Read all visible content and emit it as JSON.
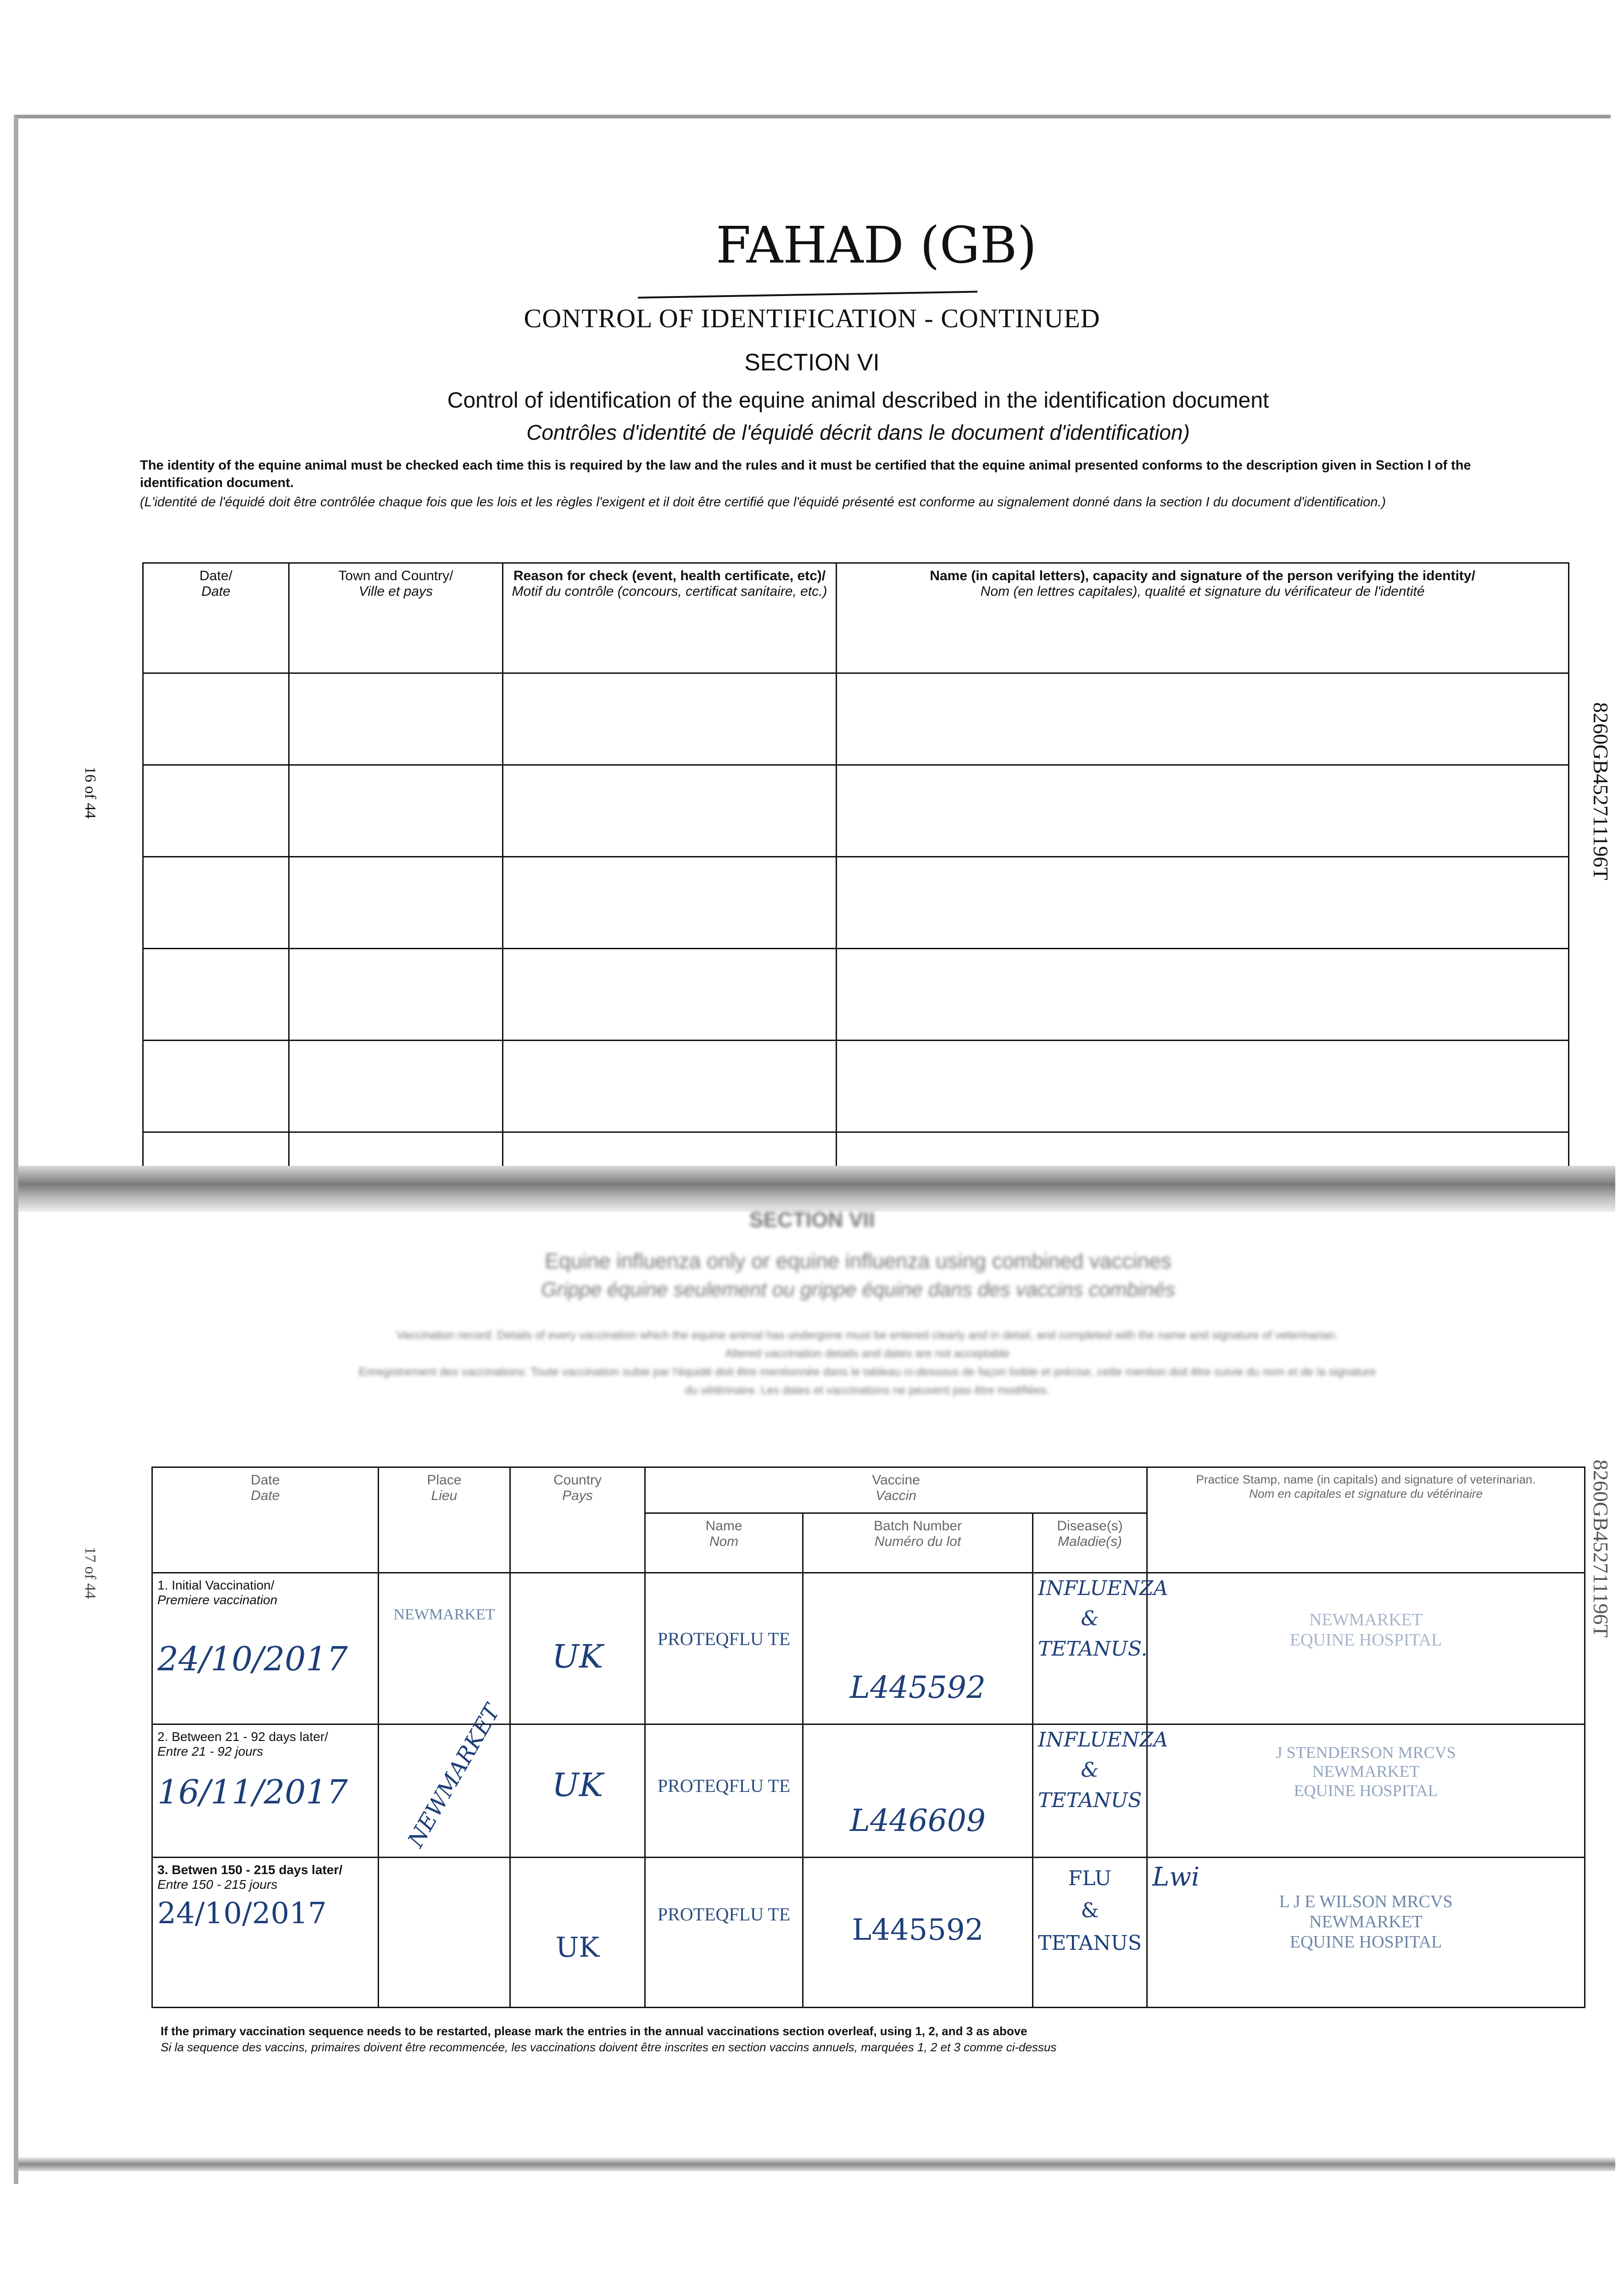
{
  "handwritten_title": "FAHAD (GB)",
  "top_page": {
    "page_number": "16 of 44",
    "document_id": "8260GB452711196T",
    "title": "CONTROL OF IDENTIFICATION - CONTINUED",
    "section": "SECTION VI",
    "heading_en": "Control of identification of the equine animal described in the identification document",
    "heading_fr": "Contrôles d'identité de l'équidé décrit dans le document d'identification)",
    "intro_en": "The identity of the equine animal must be checked each time this is required by the law and the rules and it must be certified that the equine animal presented conforms to the description given in Section I of the identification document.",
    "intro_fr": "(L'identité de l'équidé doit être contrôlée chaque fois que les lois et les règles l'exigent et il doit être certifié que l'équidé présenté est conforme au signalement donné dans la section I du document d'identification.)",
    "columns": [
      {
        "en": "Date/",
        "fr": "Date"
      },
      {
        "en": "Town and Country/",
        "fr": "Ville et pays"
      },
      {
        "en": "Reason for check (event, health certificate, etc)/",
        "fr": "Motif du contrôle (concours, certificat sanitaire, etc.)"
      },
      {
        "en": "Name (in capital letters), capacity and signature of the person verifying the identity/",
        "fr": "Nom (en lettres capitales), qualité et signature du vérificateur de l'identité"
      }
    ]
  },
  "bottom_page": {
    "page_number": "17 of 44",
    "document_id": "8260GB452711196T",
    "section": "SECTION VII",
    "heading_en": "Equine influenza only or equine influenza using combined vaccines",
    "heading_fr": "Grippe équine seulement ou grippe équine dans des vaccins combinés",
    "intro_en": "Vaccination record: Details of every vaccination which the equine animal has undergone must be entered clearly and in detail, and completed with the name and signature of veterinarian.",
    "intro_en2": "Altered vaccination details and dates are not acceptable",
    "intro_fr": "Enregistrement des vaccinations: Toute vaccination subie par l'équidé doit être mentionnée dans le tableau ci-dessous de façon lisible et précise, cette mention doit être suivie du nom et de la signature",
    "intro_fr2": "du vétérinaire. Les dates et vaccinations ne peuvent pas être modifiées.",
    "columns": {
      "date": {
        "en": "Date",
        "fr": "Date"
      },
      "place": {
        "en": "Place",
        "fr": "Lieu"
      },
      "country": {
        "en": "Country",
        "fr": "Pays"
      },
      "vaccine": {
        "en": "Vaccine",
        "fr": "Vaccin"
      },
      "name": {
        "en": "Name",
        "fr": "Nom"
      },
      "batch": {
        "en": "Batch Number",
        "fr": "Numéro du lot"
      },
      "disease": {
        "en": "Disease(s)",
        "fr": "Maladie(s)"
      },
      "stamp": {
        "en": "Practice Stamp, name (in capitals) and signature of veterinarian.",
        "fr": "Nom en capitales et signature du vétérinaire"
      }
    },
    "rows": [
      {
        "label_en": "1. Initial Vaccination/",
        "label_fr": "Premiere vaccination",
        "date": "24/10/2017",
        "place": "NEWMARKET",
        "country": "UK",
        "vaccine": "PROTEQFLU TE",
        "batch": "L445592",
        "disease": [
          "INFLUENZA",
          "&",
          "TETANUS."
        ],
        "stamp": [
          "NEWMARKET",
          "EQUINE HOSPITAL"
        ],
        "signature": ""
      },
      {
        "label_en": "2. Between 21 - 92 days later/",
        "label_fr": "Entre 21 - 92 jours",
        "date": "16/11/2017",
        "place": "NEWMARKET",
        "country": "UK",
        "vaccine": "PROTEQFLU TE",
        "batch": "L446609",
        "disease": [
          "INFLUENZA",
          "&",
          "TETANUS"
        ],
        "stamp": [
          "J STENDERSON MRCVS",
          "NEWMARKET",
          "EQUINE HOSPITAL"
        ],
        "signature": ""
      },
      {
        "label_en": "3. Betwen 150 - 215 days later/",
        "label_fr": "Entre 150 - 215 jours",
        "date": "24/10/2017",
        "place": "",
        "country": "UK",
        "vaccine": "PROTEQFLU TE",
        "batch": "L445592",
        "disease": [
          "FLU",
          "&",
          "TETANUS"
        ],
        "stamp": [
          "L J E WILSON MRCVS",
          "NEWMARKET",
          "EQUINE HOSPITAL"
        ],
        "signature": "Lwi"
      }
    ],
    "footnote_en": "If the primary vaccination sequence needs to be restarted, please mark the entries in the annual vaccinations section overleaf, using 1, 2, and 3 as above",
    "footnote_fr": "Si la sequence des vaccins, primaires doivent être recommencée, les vaccinations doivent être inscrites en section vaccins annuels, marquées 1, 2 et 3 comme ci-dessus"
  }
}
